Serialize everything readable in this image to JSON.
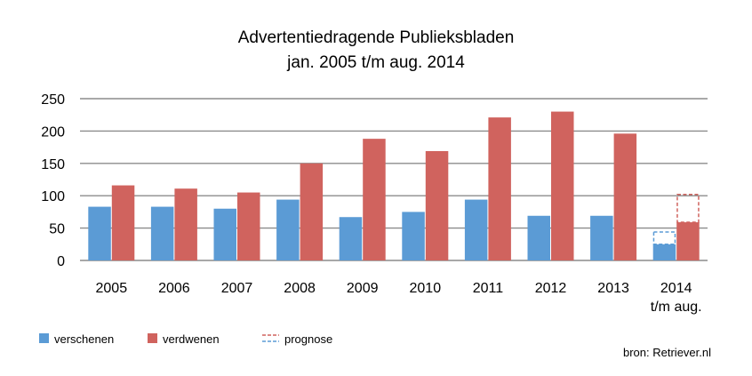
{
  "chart_data": {
    "type": "bar",
    "title": "Advertentiedragende Publieksbladen",
    "subtitle": "jan. 2005 t/m aug. 2014",
    "categories": [
      "2005",
      "2006",
      "2007",
      "2008",
      "2009",
      "2010",
      "2011",
      "2012",
      "2013",
      "2014"
    ],
    "category_sublabels": [
      "",
      "",
      "",
      "",
      "",
      "",
      "",
      "",
      "",
      "t/m aug."
    ],
    "series": [
      {
        "name": "verschenen",
        "color": "#5b9bd5",
        "values": [
          83,
          83,
          80,
          94,
          67,
          75,
          94,
          69,
          69,
          25
        ]
      },
      {
        "name": "verdwenen",
        "color": "#d0635e",
        "values": [
          116,
          111,
          105,
          150,
          188,
          169,
          221,
          230,
          196,
          59
        ]
      }
    ],
    "forecast": {
      "name": "prognose",
      "category": "2014",
      "values": {
        "verschenen": 44,
        "verdwenen": 102
      }
    },
    "yticks": [
      "0",
      "50",
      "100",
      "150",
      "200",
      "250"
    ],
    "ylim": [
      0,
      250
    ],
    "grid": true,
    "legend": "bottom-left",
    "source": "bron: Retriever.nl"
  }
}
